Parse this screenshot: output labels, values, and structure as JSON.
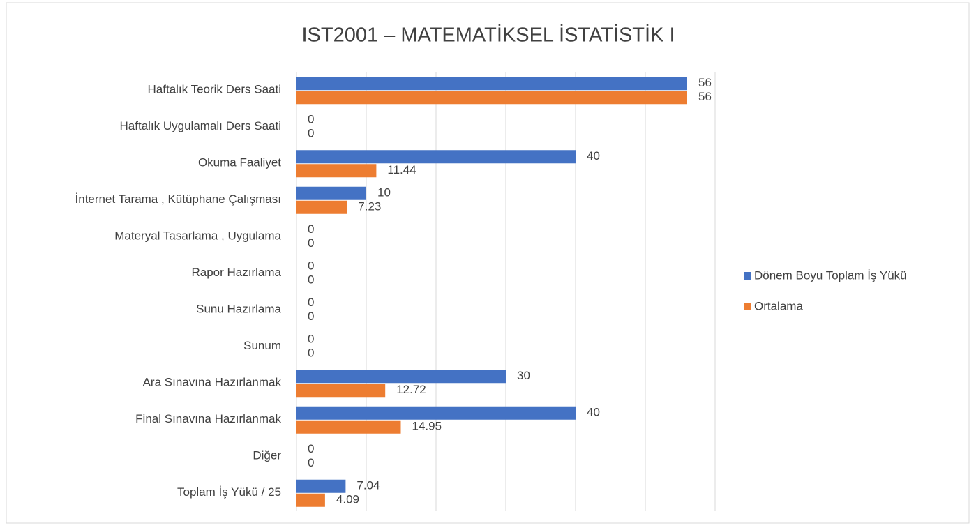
{
  "chart_data": {
    "type": "barh",
    "title": "IST2001 – MATEMATİKSEL İSTATİSTİK I",
    "categories": [
      "Haftalık Teorik Ders Saati",
      "Haftalık Uygulamalı Ders Saati",
      "Okuma Faaliyet",
      "İnternet Tarama , Kütüphane Çalışması",
      "Materyal Tasarlama , Uygulama",
      "Rapor Hazırlama",
      "Sunu Hazırlama",
      "Sunum",
      "Ara Sınavına Hazırlanmak",
      "Final Sınavına Hazırlanmak",
      "Diğer",
      "Toplam İş Yükü / 25"
    ],
    "series": [
      {
        "name": "Dönem Boyu Toplam İş Yükü",
        "color": "#4472c4",
        "values": [
          56,
          0,
          40,
          10,
          0,
          0,
          0,
          0,
          30,
          40,
          0,
          7.04
        ]
      },
      {
        "name": "Ortalama",
        "color": "#ed7d31",
        "values": [
          56,
          0,
          11.44,
          7.23,
          0,
          0,
          0,
          0,
          12.72,
          14.95,
          0,
          4.09
        ]
      }
    ],
    "xlim": [
      0,
      60
    ],
    "xticks": [
      0,
      10,
      20,
      30,
      40,
      50,
      60
    ],
    "grid": true,
    "legend": "right"
  }
}
